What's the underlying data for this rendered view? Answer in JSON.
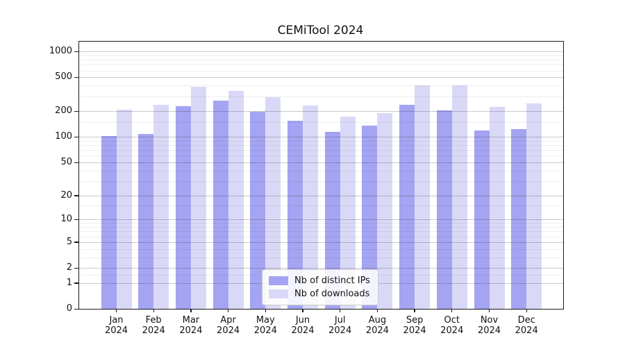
{
  "title": "CEMiTool 2024",
  "chart_data": {
    "type": "bar",
    "title": "CEMiTool 2024",
    "categories": [
      "Jan",
      "Feb",
      "Mar",
      "Apr",
      "May",
      "Jun",
      "Jul",
      "Aug",
      "Sep",
      "Oct",
      "Nov",
      "Dec"
    ],
    "year": "2024",
    "series": [
      {
        "name": "Nb of distinct IPs",
        "color": "#a4a4f2",
        "values": [
          103,
          108,
          231,
          265,
          198,
          156,
          114,
          136,
          238,
          205,
          120,
          124
        ]
      },
      {
        "name": "Nb of downloads",
        "color": "#d9d9f7",
        "values": [
          209,
          238,
          390,
          348,
          295,
          234,
          174,
          191,
          402,
          401,
          226,
          246
        ]
      }
    ],
    "xlabel": "",
    "ylabel": "",
    "y_axis": {
      "scale": "log10(value+1)",
      "ticks": [
        0,
        1,
        2,
        5,
        10,
        20,
        50,
        100,
        200,
        500,
        1000
      ],
      "minor_gridlines": [
        1.5,
        3,
        4,
        6,
        7,
        8,
        9,
        15,
        30,
        40,
        60,
        70,
        80,
        90,
        150,
        300,
        400,
        600,
        700,
        800,
        900
      ],
      "max": 1000
    },
    "grid": true,
    "legend": {
      "position": "inside-bottom-center",
      "entries": [
        "Nb of distinct IPs",
        "Nb of downloads"
      ]
    }
  }
}
